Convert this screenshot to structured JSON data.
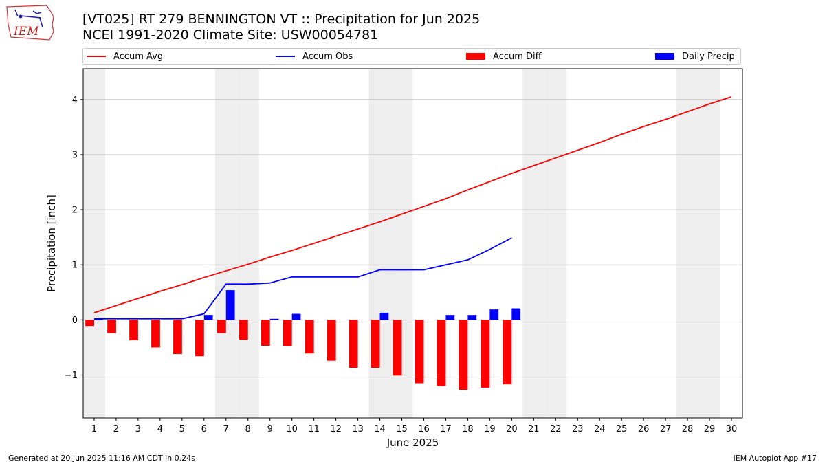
{
  "logo": {
    "text": "IEM"
  },
  "header": {
    "title": "[VT025] RT 279 BENNINGTON  VT :: Precipitation for Jun 2025",
    "subtitle": "NCEI 1991-2020 Climate Site: USW00054781"
  },
  "legend": {
    "accum_avg": "Accum Avg",
    "accum_obs": "Accum Obs",
    "accum_diff": "Accum Diff",
    "daily_precip": "Daily Precip"
  },
  "footer": {
    "left": "Generated at 20 Jun 2025 11:16 AM CDT in 0.24s",
    "right": "IEM Autoplot App #17"
  },
  "colors": {
    "accum_avg": "#ff0000",
    "accum_obs": "#0000ff",
    "accum_diff": "#ff0000",
    "daily_precip": "#0000ff",
    "weekend_shade": "#eeeeee",
    "grid": "#b0b0b0"
  },
  "chart_data": {
    "type": "bar",
    "xlabel": "June 2025",
    "ylabel": "Precipitation [inch]",
    "xlim": [
      0.5,
      30.5
    ],
    "ylim": [
      -1.78,
      4.56
    ],
    "yticks": [
      -1,
      0,
      1,
      2,
      3,
      4
    ],
    "ytick_labels": [
      "−1",
      "0",
      "1",
      "2",
      "3",
      "4"
    ],
    "grid": "horizontal",
    "legend_position": "top",
    "x": [
      1,
      2,
      3,
      4,
      5,
      6,
      7,
      8,
      9,
      10,
      11,
      12,
      13,
      14,
      15,
      16,
      17,
      18,
      19,
      20,
      21,
      22,
      23,
      24,
      25,
      26,
      27,
      28,
      29,
      30
    ],
    "weekend_days": [
      1,
      7,
      8,
      14,
      15,
      21,
      22,
      28,
      29
    ],
    "series": [
      {
        "name": "Accum Avg",
        "kind": "line",
        "x": [
          1,
          2,
          3,
          4,
          5,
          6,
          7,
          8,
          9,
          10,
          11,
          12,
          13,
          14,
          15,
          16,
          17,
          18,
          19,
          20,
          21,
          22,
          23,
          24,
          25,
          26,
          27,
          28,
          29,
          30
        ],
        "values": [
          0.13,
          0.26,
          0.39,
          0.52,
          0.64,
          0.77,
          0.89,
          1.01,
          1.14,
          1.26,
          1.39,
          1.52,
          1.65,
          1.78,
          1.92,
          2.06,
          2.2,
          2.36,
          2.51,
          2.66,
          2.8,
          2.94,
          3.08,
          3.22,
          3.37,
          3.51,
          3.64,
          3.78,
          3.92,
          4.05
        ]
      },
      {
        "name": "Accum Obs",
        "kind": "line",
        "x": [
          1,
          2,
          3,
          4,
          5,
          6,
          7,
          8,
          9,
          10,
          11,
          12,
          13,
          14,
          15,
          16,
          17,
          18,
          19,
          20
        ],
        "values": [
          0.02,
          0.02,
          0.02,
          0.02,
          0.02,
          0.11,
          0.65,
          0.65,
          0.67,
          0.78,
          0.78,
          0.78,
          0.78,
          0.91,
          0.91,
          0.91,
          1.0,
          1.09,
          1.28,
          1.49
        ]
      },
      {
        "name": "Accum Diff",
        "kind": "bar",
        "x": [
          1,
          2,
          3,
          4,
          5,
          6,
          7,
          8,
          9,
          10,
          11,
          12,
          13,
          14,
          15,
          16,
          17,
          18,
          19,
          20
        ],
        "values": [
          -0.11,
          -0.24,
          -0.37,
          -0.5,
          -0.62,
          -0.66,
          -0.24,
          -0.36,
          -0.47,
          -0.48,
          -0.61,
          -0.74,
          -0.87,
          -0.87,
          -1.01,
          -1.15,
          -1.2,
          -1.27,
          -1.23,
          -1.17
        ]
      },
      {
        "name": "Daily Precip",
        "kind": "bar",
        "x": [
          1,
          2,
          3,
          4,
          5,
          6,
          7,
          8,
          9,
          10,
          11,
          12,
          13,
          14,
          15,
          16,
          17,
          18,
          19,
          20
        ],
        "values": [
          0.02,
          0,
          0,
          0,
          0,
          0.09,
          0.54,
          0,
          0.02,
          0.11,
          0,
          0,
          0,
          0.13,
          0,
          0,
          0.09,
          0.09,
          0.19,
          0.21
        ]
      }
    ]
  }
}
